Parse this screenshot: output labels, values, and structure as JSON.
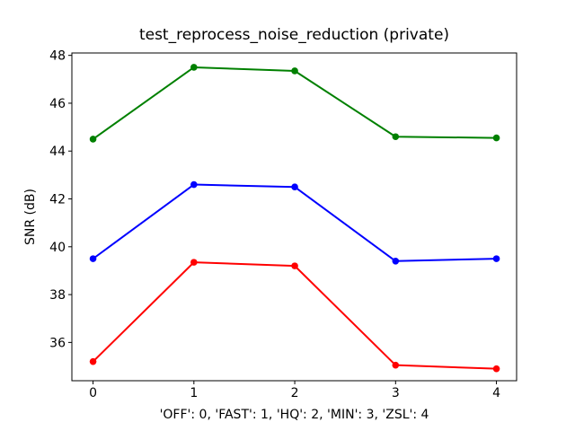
{
  "figure": {
    "background": "#ffffff",
    "axis_color": "#000000",
    "text_color": "#000000"
  },
  "chart_data": {
    "type": "line",
    "title": "test_reprocess_noise_reduction (private)",
    "xlabel": "'OFF': 0, 'FAST': 1, 'HQ': 2, 'MIN': 3, 'ZSL': 4",
    "ylabel": "SNR (dB)",
    "x": [
      0,
      1,
      2,
      3,
      4
    ],
    "xticks": [
      0,
      1,
      2,
      3,
      4
    ],
    "yticks": [
      36,
      38,
      40,
      42,
      44,
      46,
      48
    ],
    "xlim": [
      -0.21,
      4.2
    ],
    "ylim": [
      34.4,
      48.1
    ],
    "grid": false,
    "legend_position": "none",
    "marker": "o",
    "series": [
      {
        "name": "green-series",
        "color": "#008000",
        "values": [
          44.5,
          47.5,
          47.35,
          44.6,
          44.55
        ]
      },
      {
        "name": "blue-series",
        "color": "#0000ff",
        "values": [
          39.5,
          42.6,
          42.5,
          39.4,
          39.5
        ]
      },
      {
        "name": "red-series",
        "color": "#ff0000",
        "values": [
          35.2,
          39.35,
          39.2,
          35.05,
          34.9
        ]
      }
    ]
  }
}
